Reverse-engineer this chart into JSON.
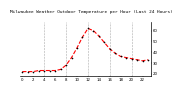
{
  "title": "Milwaukee Weather Outdoor Temperature per Hour (Last 24 Hours)",
  "hours": [
    0,
    1,
    2,
    3,
    4,
    5,
    6,
    7,
    8,
    9,
    10,
    11,
    12,
    13,
    14,
    15,
    16,
    17,
    18,
    19,
    20,
    21,
    22,
    23
  ],
  "temps": [
    22,
    22,
    22,
    23,
    23,
    23,
    23,
    24,
    28,
    35,
    44,
    54,
    62,
    60,
    55,
    49,
    43,
    39,
    36,
    35,
    34,
    33,
    32,
    33
  ],
  "line_color": "#ff0000",
  "marker_color": "#000000",
  "bg_color": "#ffffff",
  "grid_color": "#aaaaaa",
  "ylim": [
    18,
    68
  ],
  "yticks": [
    20,
    30,
    40,
    50,
    60
  ],
  "xtick_hours": [
    0,
    2,
    4,
    6,
    8,
    10,
    12,
    14,
    16,
    18,
    20,
    22
  ],
  "vgrid_hours": [
    4,
    8,
    12,
    16,
    20
  ],
  "title_fontsize": 3.2,
  "tick_fontsize": 2.8
}
